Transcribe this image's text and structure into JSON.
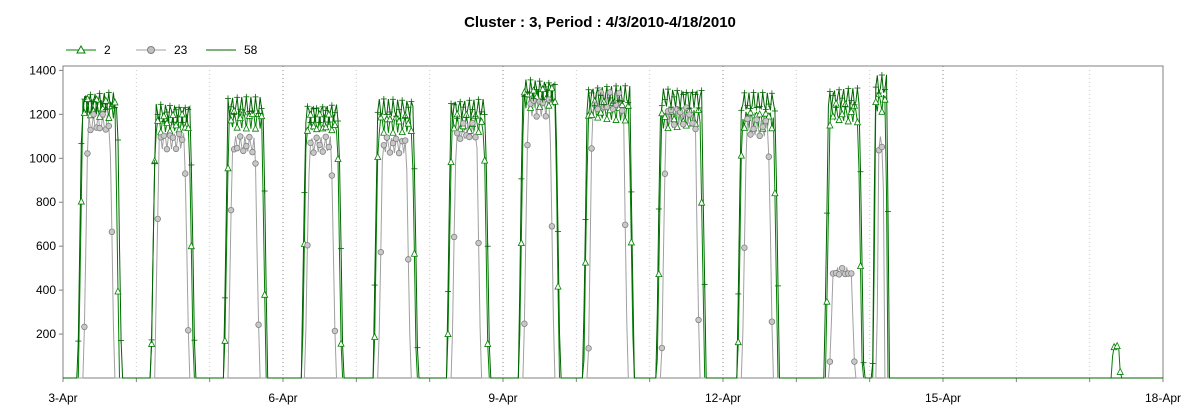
{
  "chart_data": {
    "type": "line",
    "title": "Cluster : 3, Period : 4/3/2010-4/18/2010",
    "xlabel": "",
    "ylabel": "",
    "x_tick_labels": [
      "3-Apr",
      "6-Apr",
      "9-Apr",
      "12-Apr",
      "15-Apr",
      "18-Apr"
    ],
    "x_tick_days": [
      0,
      3,
      6,
      9,
      12,
      15
    ],
    "xlim_days": [
      0,
      15
    ],
    "ylim": [
      0,
      1420
    ],
    "y_ticks": [
      200,
      400,
      600,
      800,
      1000,
      1200,
      1400
    ],
    "grid": "vertical dotted lines at each day",
    "legend_position": "top-left",
    "series": [
      {
        "name": "2",
        "marker": "triangle",
        "color": "#008000",
        "day_profiles": [
          {
            "day": 0,
            "start": 0.21,
            "end": 0.77,
            "level": 1270
          },
          {
            "day": 1,
            "start": 0.2,
            "end": 0.78,
            "level": 1200
          },
          {
            "day": 2,
            "start": 0.2,
            "end": 0.77,
            "level": 1220
          },
          {
            "day": 3,
            "start": 0.26,
            "end": 0.8,
            "level": 1200
          },
          {
            "day": 4,
            "start": 0.24,
            "end": 0.82,
            "level": 1200
          },
          {
            "day": 5,
            "start": 0.24,
            "end": 0.8,
            "level": 1200
          },
          {
            "day": 6,
            "start": 0.22,
            "end": 0.77,
            "level": 1320
          },
          {
            "day": 7,
            "start": 0.1,
            "end": 0.78,
            "level": 1260
          },
          {
            "day": 8,
            "start": 0.1,
            "end": 0.75,
            "level": 1220
          },
          {
            "day": 9,
            "start": 0.2,
            "end": 0.75,
            "level": 1220
          },
          {
            "day": 10,
            "start": 0.4,
            "end": 0.9,
            "level": 1250
          },
          {
            "day": 11,
            "start": 0.05,
            "end": 0.25,
            "level": 1300
          },
          {
            "day": 14,
            "start": 0.3,
            "end": 0.42,
            "level": 150
          }
        ]
      },
      {
        "name": "23",
        "marker": "circle",
        "color": "#a0a0a0",
        "day_profiles": [
          {
            "day": 0,
            "start": 0.28,
            "end": 0.7,
            "level": 1200
          },
          {
            "day": 1,
            "start": 0.25,
            "end": 0.72,
            "level": 1120
          },
          {
            "day": 2,
            "start": 0.25,
            "end": 0.68,
            "level": 1100
          },
          {
            "day": 3,
            "start": 0.3,
            "end": 0.72,
            "level": 1100
          },
          {
            "day": 4,
            "start": 0.3,
            "end": 0.74,
            "level": 1100
          },
          {
            "day": 5,
            "start": 0.3,
            "end": 0.7,
            "level": 1160
          },
          {
            "day": 6,
            "start": 0.28,
            "end": 0.7,
            "level": 1280
          },
          {
            "day": 7,
            "start": 0.16,
            "end": 0.7,
            "level": 1300
          },
          {
            "day": 8,
            "start": 0.16,
            "end": 0.68,
            "level": 1240
          },
          {
            "day": 9,
            "start": 0.26,
            "end": 0.68,
            "level": 1180
          },
          {
            "day": 10,
            "start": 0.45,
            "end": 0.8,
            "level": 500
          },
          {
            "day": 11,
            "start": 0.1,
            "end": 0.2,
            "level": 1100
          }
        ]
      },
      {
        "name": "58",
        "marker": "plus",
        "color": "#006400",
        "day_profiles": [
          {
            "day": 0,
            "start": 0.2,
            "end": 0.8,
            "level": 1300
          },
          {
            "day": 1,
            "start": 0.2,
            "end": 0.8,
            "level": 1250
          },
          {
            "day": 2,
            "start": 0.19,
            "end": 0.79,
            "level": 1280
          },
          {
            "day": 3,
            "start": 0.25,
            "end": 0.82,
            "level": 1250
          },
          {
            "day": 4,
            "start": 0.23,
            "end": 0.84,
            "level": 1270
          },
          {
            "day": 5,
            "start": 0.23,
            "end": 0.82,
            "level": 1270
          },
          {
            "day": 6,
            "start": 0.21,
            "end": 0.78,
            "level": 1360
          },
          {
            "day": 7,
            "start": 0.09,
            "end": 0.79,
            "level": 1330
          },
          {
            "day": 8,
            "start": 0.09,
            "end": 0.77,
            "level": 1320
          },
          {
            "day": 9,
            "start": 0.19,
            "end": 0.77,
            "level": 1300
          },
          {
            "day": 10,
            "start": 0.38,
            "end": 0.92,
            "level": 1320
          },
          {
            "day": 11,
            "start": 0.04,
            "end": 0.27,
            "level": 1380
          }
        ]
      }
    ]
  }
}
